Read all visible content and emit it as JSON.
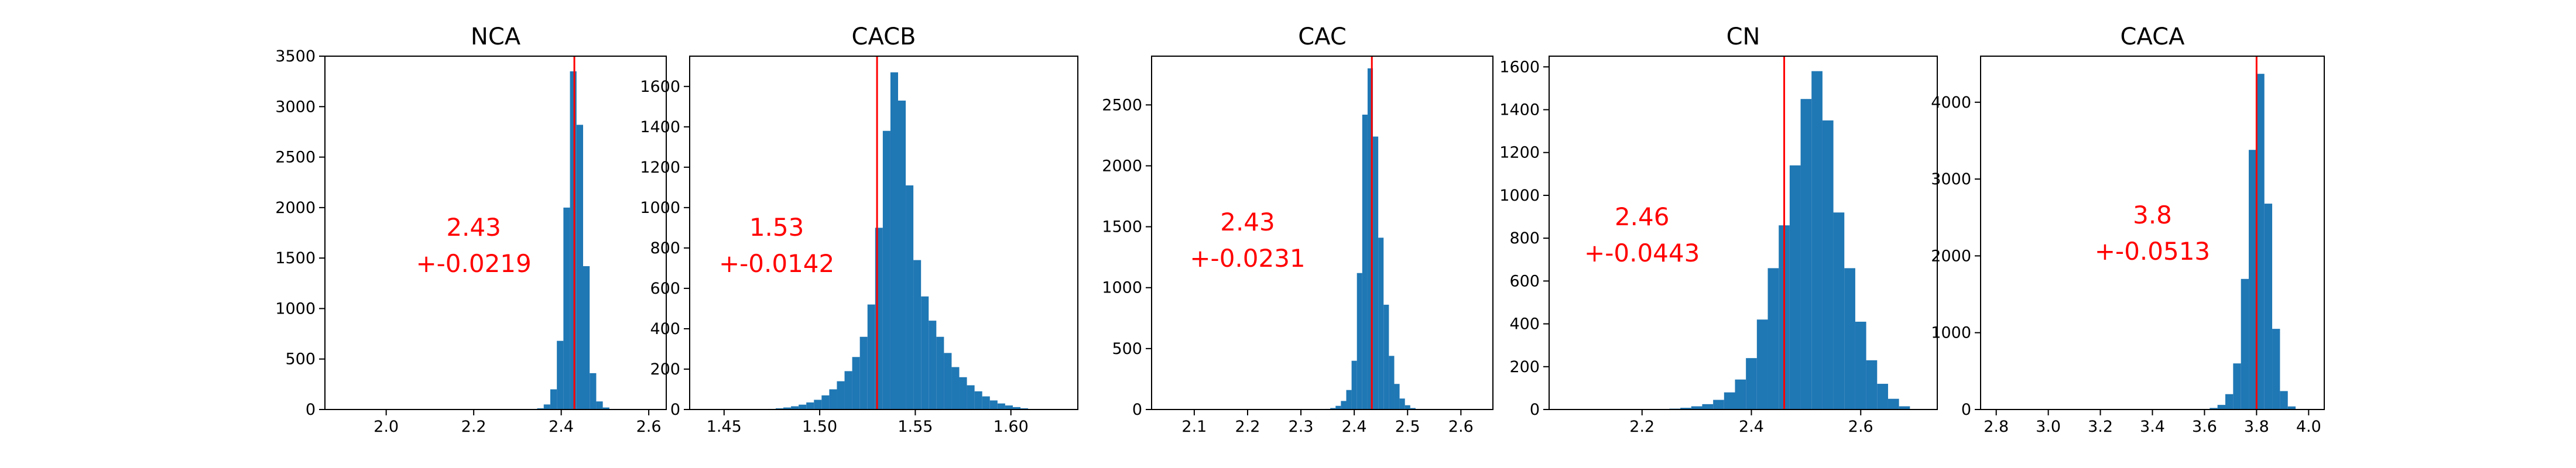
{
  "figure": {
    "background": "#ffffff",
    "bar_color": "#1f77b4",
    "marker_color": "#ff0000"
  },
  "chart_data": [
    {
      "type": "bar",
      "title": "NCA",
      "xlim": [
        1.86,
        2.64
      ],
      "ylim": [
        0,
        3500
      ],
      "xticks": [
        2.0,
        2.2,
        2.4,
        2.6
      ],
      "xtick_labels": [
        "2.0",
        "2.2",
        "2.4",
        "2.6"
      ],
      "yticks": [
        0,
        500,
        1000,
        1500,
        2000,
        2500,
        3000,
        3500
      ],
      "ytick_labels": [
        "0",
        "500",
        "1000",
        "1500",
        "2000",
        "2500",
        "3000",
        "3500"
      ],
      "bins": [
        2.3525,
        2.3675,
        2.3825,
        2.3975,
        2.4125,
        2.4275,
        2.4425,
        2.4575,
        2.4725,
        2.4875,
        2.5025,
        2.5175
      ],
      "bin_width": 0.015,
      "values": [
        12,
        50,
        200,
        680,
        2000,
        3350,
        2820,
        1420,
        360,
        80,
        20,
        5
      ],
      "vline": 2.43,
      "annotation": [
        "2.43",
        "+-0.0219"
      ],
      "annotation_pos": {
        "x": 2.2,
        "y": 1720
      }
    },
    {
      "type": "bar",
      "title": "CACB",
      "xlim": [
        1.432,
        1.635
      ],
      "ylim": [
        0,
        1750
      ],
      "xticks": [
        1.45,
        1.5,
        1.55,
        1.6
      ],
      "xtick_labels": [
        "1.45",
        "1.50",
        "1.55",
        "1.60"
      ],
      "yticks": [
        0,
        200,
        400,
        600,
        800,
        1000,
        1200,
        1400,
        1600
      ],
      "ytick_labels": [
        "0",
        "200",
        "400",
        "600",
        "800",
        "1000",
        "1200",
        "1400",
        "1600"
      ],
      "bins": [
        1.475,
        1.479,
        1.483,
        1.487,
        1.491,
        1.495,
        1.499,
        1.503,
        1.507,
        1.511,
        1.515,
        1.519,
        1.523,
        1.527,
        1.531,
        1.535,
        1.539,
        1.543,
        1.547,
        1.551,
        1.555,
        1.559,
        1.563,
        1.567,
        1.571,
        1.575,
        1.579,
        1.583,
        1.587,
        1.591,
        1.595,
        1.599,
        1.603,
        1.607
      ],
      "bin_width": 0.004,
      "values": [
        3,
        6,
        10,
        16,
        24,
        35,
        48,
        70,
        100,
        140,
        190,
        260,
        360,
        520,
        900,
        1380,
        1670,
        1530,
        1110,
        740,
        560,
        440,
        360,
        280,
        210,
        160,
        120,
        90,
        65,
        45,
        30,
        20,
        12,
        6
      ],
      "vline": 1.53,
      "annotation": [
        "1.53",
        "+-0.0142"
      ],
      "annotation_pos": {
        "x": 1.4775,
        "y": 860
      }
    },
    {
      "type": "bar",
      "title": "CAC",
      "xlim": [
        2.02,
        2.66
      ],
      "ylim": [
        0,
        2900
      ],
      "xticks": [
        2.1,
        2.2,
        2.3,
        2.4,
        2.5,
        2.6
      ],
      "xtick_labels": [
        "2.1",
        "2.2",
        "2.3",
        "2.4",
        "2.5",
        "2.6"
      ],
      "yticks": [
        0,
        500,
        1000,
        1500,
        2000,
        2500
      ],
      "ytick_labels": [
        "0",
        "500",
        "1000",
        "1500",
        "2000",
        "2500"
      ],
      "bins": [
        2.35,
        2.36,
        2.37,
        2.38,
        2.39,
        2.4,
        2.41,
        2.42,
        2.43,
        2.44,
        2.45,
        2.46,
        2.47,
        2.48,
        2.49,
        2.5,
        2.51,
        2.52
      ],
      "bin_width": 0.01,
      "values": [
        5,
        12,
        30,
        70,
        160,
        400,
        1120,
        2420,
        2800,
        2240,
        1410,
        860,
        440,
        210,
        90,
        35,
        12,
        4
      ],
      "vline": 2.433,
      "annotation": [
        "2.43",
        "+-0.0231"
      ],
      "annotation_pos": {
        "x": 2.2,
        "y": 1470
      }
    },
    {
      "type": "bar",
      "title": "CN",
      "xlim": [
        2.03,
        2.74
      ],
      "ylim": [
        0,
        1650
      ],
      "xticks": [
        2.2,
        2.4,
        2.6
      ],
      "xtick_labels": [
        "2.2",
        "2.4",
        "2.6"
      ],
      "yticks": [
        0,
        200,
        400,
        600,
        800,
        1000,
        1200,
        1400,
        1600
      ],
      "ytick_labels": [
        "0",
        "200",
        "400",
        "600",
        "800",
        "1000",
        "1200",
        "1400",
        "1600"
      ],
      "bins": [
        2.24,
        2.26,
        2.28,
        2.3,
        2.32,
        2.34,
        2.36,
        2.38,
        2.4,
        2.42,
        2.44,
        2.46,
        2.48,
        2.5,
        2.52,
        2.54,
        2.56,
        2.58,
        2.6,
        2.62,
        2.64,
        2.66,
        2.68
      ],
      "bin_width": 0.02,
      "values": [
        2,
        4,
        8,
        15,
        25,
        45,
        80,
        140,
        240,
        420,
        660,
        860,
        1140,
        1450,
        1580,
        1350,
        920,
        660,
        410,
        230,
        120,
        50,
        15
      ],
      "vline": 2.46,
      "annotation": [
        "2.46",
        "+-0.0443"
      ],
      "annotation_pos": {
        "x": 2.2,
        "y": 860
      }
    },
    {
      "type": "bar",
      "title": "CACA",
      "xlim": [
        2.74,
        4.06
      ],
      "ylim": [
        0,
        4600
      ],
      "xticks": [
        2.8,
        3.0,
        3.2,
        3.4,
        3.6,
        3.8,
        4.0
      ],
      "xtick_labels": [
        "2.8",
        "3.0",
        "3.2",
        "3.4",
        "3.6",
        "3.8",
        "4.0"
      ],
      "yticks": [
        0,
        1000,
        2000,
        3000,
        4000
      ],
      "ytick_labels": [
        "0",
        "1000",
        "2000",
        "3000",
        "4000"
      ],
      "bins": [
        3.635,
        3.665,
        3.695,
        3.725,
        3.755,
        3.785,
        3.815,
        3.845,
        3.875,
        3.905,
        3.935
      ],
      "bin_width": 0.03,
      "values": [
        20,
        60,
        200,
        600,
        1700,
        3380,
        4370,
        2680,
        1050,
        240,
        40
      ],
      "vline": 3.8,
      "annotation": [
        "3.8",
        "+-0.0513"
      ],
      "annotation_pos": {
        "x": 3.4,
        "y": 2420
      }
    }
  ]
}
